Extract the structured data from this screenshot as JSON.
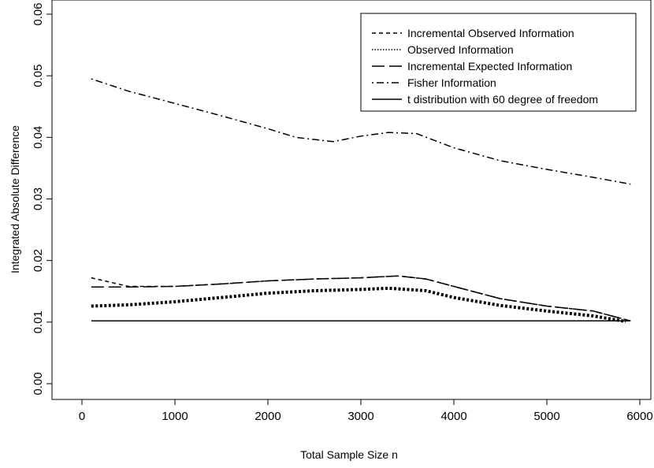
{
  "chart_data": {
    "type": "line",
    "title": "",
    "xlabel": "Total Sample Size n",
    "ylabel": "Integrated Absolute Difference",
    "xlim": [
      0,
      6000
    ],
    "ylim": [
      0,
      0.06
    ],
    "x_ticks": [
      0,
      1000,
      2000,
      3000,
      4000,
      5000,
      6000
    ],
    "x_tick_labels": [
      "0",
      "1000",
      "2000",
      "3000",
      "4000",
      "5000",
      "6000"
    ],
    "y_ticks": [
      0,
      0.01,
      0.02,
      0.03,
      0.04,
      0.05,
      0.06
    ],
    "y_tick_labels": [
      "0.00",
      "0.01",
      "0.02",
      "0.03",
      "0.04",
      "0.05",
      "0.06"
    ],
    "grid": false,
    "legend_position": "top-right",
    "series": [
      {
        "name": "Incremental Observed Information",
        "style": "dashed",
        "x": [
          100,
          500,
          1000,
          1500,
          2000,
          2500,
          3000,
          3400,
          3700,
          4000,
          4500,
          5000,
          5500,
          5900
        ],
        "y": [
          0.0172,
          0.0158,
          0.0158,
          0.0162,
          0.0167,
          0.017,
          0.0172,
          0.0175,
          0.017,
          0.0158,
          0.0138,
          0.0126,
          0.0118,
          0.0102
        ]
      },
      {
        "name": "Observed Information",
        "style": "dotted",
        "x": [
          100,
          500,
          1000,
          1500,
          2000,
          2500,
          3000,
          3300,
          3700,
          4000,
          4500,
          5000,
          5500,
          5850
        ],
        "y": [
          0.0126,
          0.0128,
          0.0133,
          0.014,
          0.0147,
          0.0151,
          0.0153,
          0.0155,
          0.0151,
          0.014,
          0.0127,
          0.0118,
          0.011,
          0.0101
        ]
      },
      {
        "name": "Incremental Expected Information",
        "style": "longdash",
        "x": [
          100,
          500,
          1000,
          1500,
          2000,
          2500,
          3000,
          3400,
          3700,
          4000,
          4500,
          5000,
          5500,
          5900
        ],
        "y": [
          0.0157,
          0.0157,
          0.0158,
          0.0162,
          0.0167,
          0.017,
          0.0172,
          0.0175,
          0.017,
          0.0158,
          0.0138,
          0.0126,
          0.0118,
          0.0102
        ]
      },
      {
        "name": "Fisher Information",
        "style": "dotdash",
        "x": [
          100,
          500,
          1000,
          1500,
          2000,
          2300,
          2700,
          3000,
          3300,
          3600,
          4000,
          4500,
          5000,
          5500,
          5900
        ],
        "y": [
          0.0495,
          0.0475,
          0.0455,
          0.0435,
          0.0414,
          0.04,
          0.0393,
          0.0402,
          0.0408,
          0.0406,
          0.0383,
          0.0362,
          0.0348,
          0.0335,
          0.0324
        ]
      },
      {
        "name": "t distribution with 60 degree of freedom",
        "style": "solid",
        "x": [
          100,
          5900
        ],
        "y": [
          0.0102,
          0.0102
        ]
      }
    ]
  }
}
